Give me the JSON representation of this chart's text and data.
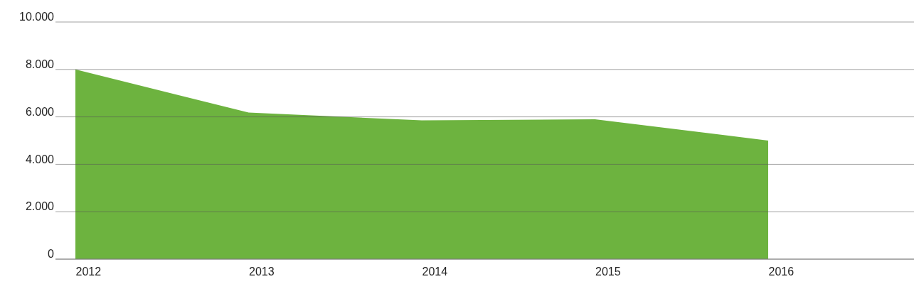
{
  "chart_data": {
    "type": "area",
    "categories": [
      "2012",
      "2013",
      "2014",
      "2015",
      "2016"
    ],
    "series": [
      {
        "color": "#6db33f",
        "values": [
          8000,
          6180,
          5850,
          5900,
          5000
        ]
      }
    ],
    "ylim": [
      0,
      10000
    ],
    "yticks": [
      {
        "value": 0,
        "label": "0"
      },
      {
        "value": 2000,
        "label": "2.000"
      },
      {
        "value": 4000,
        "label": "4.000"
      },
      {
        "value": 6000,
        "label": "6.000"
      },
      {
        "value": 8000,
        "label": "8.000"
      },
      {
        "value": 10000,
        "label": "10.000"
      }
    ],
    "grid": "y"
  }
}
